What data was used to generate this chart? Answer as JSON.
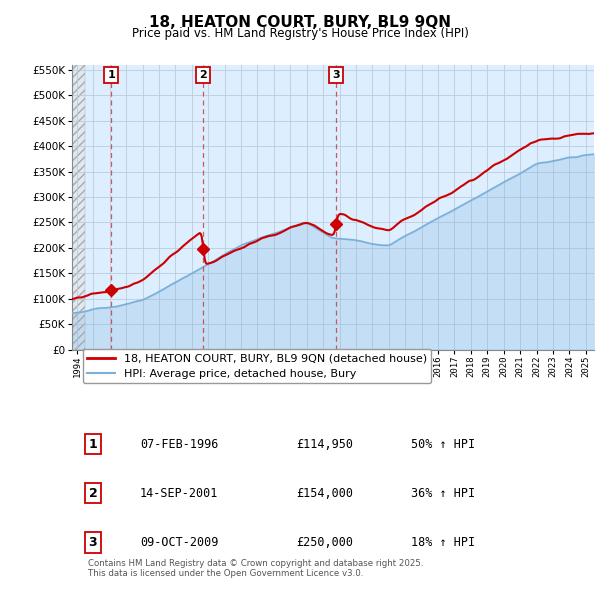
{
  "title": "18, HEATON COURT, BURY, BL9 9QN",
  "subtitle": "Price paid vs. HM Land Registry's House Price Index (HPI)",
  "ylim": [
    0,
    560000
  ],
  "xlim_start": 1993.7,
  "xlim_end": 2025.5,
  "ytick_step": 50000,
  "sale_markers": [
    {
      "num": 1,
      "year": 1996.1,
      "price": 114950
    },
    {
      "num": 2,
      "year": 2001.7,
      "price": 154000
    },
    {
      "num": 3,
      "year": 2009.8,
      "price": 250000
    }
  ],
  "legend_entries": [
    {
      "label": "18, HEATON COURT, BURY, BL9 9QN (detached house)",
      "color": "#cc0000",
      "lw": 1.5
    },
    {
      "label": "HPI: Average price, detached house, Bury",
      "color": "#7aafda",
      "lw": 1.2
    }
  ],
  "table_rows": [
    {
      "num": 1,
      "date": "07-FEB-1996",
      "price": "£114,950",
      "pct": "50% ↑ HPI"
    },
    {
      "num": 2,
      "date": "14-SEP-2001",
      "price": "£154,000",
      "pct": "36% ↑ HPI"
    },
    {
      "num": 3,
      "date": "09-OCT-2009",
      "price": "£250,000",
      "pct": "18% ↑ HPI"
    }
  ],
  "footer": "Contains HM Land Registry data © Crown copyright and database right 2025.\nThis data is licensed under the Open Government Licence v3.0.",
  "bg_color": "#ffffff",
  "plot_bg_color": "#ddeeff",
  "grid_color": "#bbccdd",
  "hatch_area_color": "#cccccc",
  "marker_box_color": "#cc0000",
  "dashed_line_color": "#cc3333"
}
